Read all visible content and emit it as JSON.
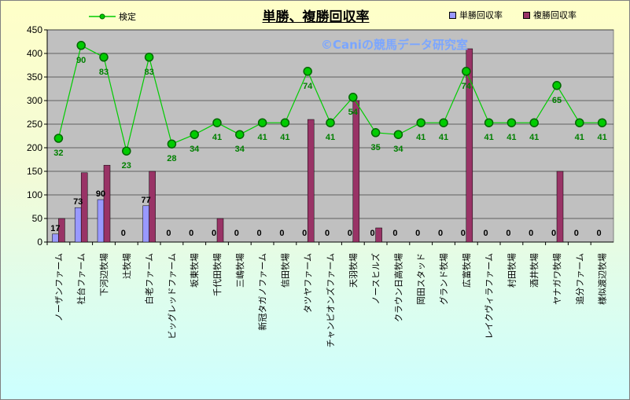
{
  "chart_data": {
    "type": "bar",
    "title": "単勝、複勝回収率",
    "watermark": "©Caniの競馬データ研究室",
    "categories": [
      "ノーザンファーム",
      "社台ファーム",
      "下河辺牧場",
      "辻牧場",
      "白老ファーム",
      "ビッグレッドファーム",
      "坂東牧場",
      "千代田牧場",
      "三嶋牧場",
      "新冠タガノファーム",
      "信田牧場",
      "タツヤファーム",
      "チャンピオンズファーム",
      "天羽牧場",
      "ノースヒルズ",
      "クラウン日高牧場",
      "岡田スタッド",
      "グランド牧場",
      "広富牧場",
      "レイクヴィラファーム",
      "村田牧場",
      "酒井牧場",
      "ヤナガワ牧場",
      "追分ファーム",
      "様似渡辺牧場"
    ],
    "series": [
      {
        "name": "単勝回収率",
        "type": "bar",
        "color": "#9999ff",
        "values": [
          17,
          73,
          90,
          0,
          77,
          0,
          0,
          0,
          0,
          0,
          0,
          0,
          0,
          0,
          0,
          0,
          0,
          0,
          0,
          0,
          0,
          0,
          0,
          0,
          0
        ]
      },
      {
        "name": "複勝回収率",
        "type": "bar",
        "color": "#993366",
        "values": [
          50,
          147,
          163,
          0,
          150,
          0,
          0,
          50,
          0,
          0,
          0,
          260,
          0,
          300,
          30,
          0,
          0,
          0,
          410,
          0,
          0,
          0,
          150,
          0,
          0
        ]
      },
      {
        "name": "検定",
        "type": "line",
        "color": "#00cc00",
        "values": [
          220,
          417,
          392,
          193,
          392,
          208,
          228,
          253,
          228,
          253,
          253,
          362,
          253,
          307,
          232,
          228,
          253,
          253,
          362,
          253,
          253,
          253,
          332,
          253,
          253
        ],
        "labels": [
          "32",
          "90",
          "83",
          "23",
          "83",
          "28",
          "34",
          "41",
          "34",
          "41",
          "41",
          "74",
          "41",
          "54",
          "35",
          "34",
          "41",
          "41",
          "74",
          "41",
          "41",
          "41",
          "65",
          "41",
          "41"
        ]
      }
    ],
    "bar_labels": [
      "17",
      "73",
      "90",
      "0",
      "77",
      "0",
      "0",
      "0",
      "0",
      "0",
      "0",
      "0",
      "0",
      "0",
      "0",
      "0",
      "0",
      "0",
      "0",
      "0",
      "0",
      "0",
      "0",
      "0",
      "0"
    ],
    "ylim": [
      0,
      450
    ],
    "yticks": [
      "0",
      "50",
      "100",
      "150",
      "200",
      "250",
      "300",
      "350",
      "400",
      "450"
    ],
    "grid": true,
    "legend_position": "top"
  }
}
